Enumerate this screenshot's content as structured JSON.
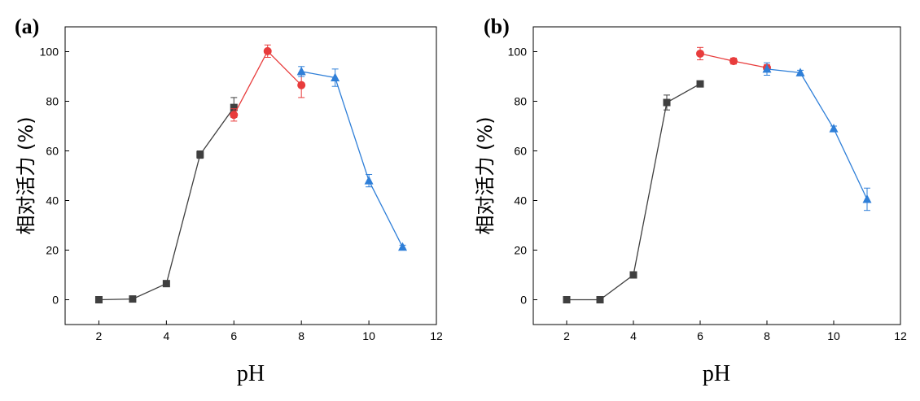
{
  "chart_data": [
    {
      "type": "line",
      "panel_label": "(a)",
      "xlabel": "pH",
      "ylabel": "相对活力 (%)",
      "xlim": [
        1,
        12
      ],
      "ylim": [
        -10,
        110
      ],
      "xticks": [
        2,
        4,
        6,
        8,
        10,
        12
      ],
      "yticks": [
        0,
        20,
        40,
        60,
        80,
        100
      ],
      "grid": false,
      "series": [
        {
          "color": "#3f3f3f",
          "marker": "square",
          "x": [
            2,
            3,
            4,
            5,
            6
          ],
          "y": [
            0,
            0.3,
            6.5,
            58.5,
            77.5
          ],
          "err": [
            0,
            0,
            0.8,
            1.5,
            4
          ]
        },
        {
          "color": "#e83c3c",
          "marker": "circle",
          "x": [
            6,
            7,
            8
          ],
          "y": [
            74.5,
            100.2,
            86.5
          ],
          "err": [
            2.5,
            2.5,
            5
          ]
        },
        {
          "color": "#2f7fd8",
          "marker": "triangle",
          "x": [
            8,
            9,
            10,
            11
          ],
          "y": [
            92,
            89.5,
            48,
            21.2
          ],
          "err": [
            2,
            3.5,
            2.5,
            0.8
          ]
        }
      ]
    },
    {
      "type": "line",
      "panel_label": "(b)",
      "xlabel": "pH",
      "ylabel": "相对活力 (%)",
      "xlim": [
        1,
        12
      ],
      "ylim": [
        -10,
        110
      ],
      "xticks": [
        2,
        4,
        6,
        8,
        10,
        12
      ],
      "yticks": [
        0,
        20,
        40,
        60,
        80,
        100
      ],
      "grid": false,
      "series": [
        {
          "color": "#3f3f3f",
          "marker": "square",
          "x": [
            2,
            3,
            4,
            5,
            6
          ],
          "y": [
            0,
            0,
            10,
            79.5,
            87
          ],
          "err": [
            0,
            0,
            1.2,
            3,
            0.5
          ]
        },
        {
          "color": "#e83c3c",
          "marker": "circle",
          "x": [
            6,
            7,
            8
          ],
          "y": [
            99.2,
            96.2,
            93.5
          ],
          "err": [
            2.5,
            1.2,
            1.2
          ]
        },
        {
          "color": "#2f7fd8",
          "marker": "triangle",
          "x": [
            8,
            9,
            10,
            11
          ],
          "y": [
            93,
            91.5,
            69,
            40.5
          ],
          "err": [
            2.5,
            1,
            1,
            4.5
          ]
        }
      ]
    }
  ]
}
